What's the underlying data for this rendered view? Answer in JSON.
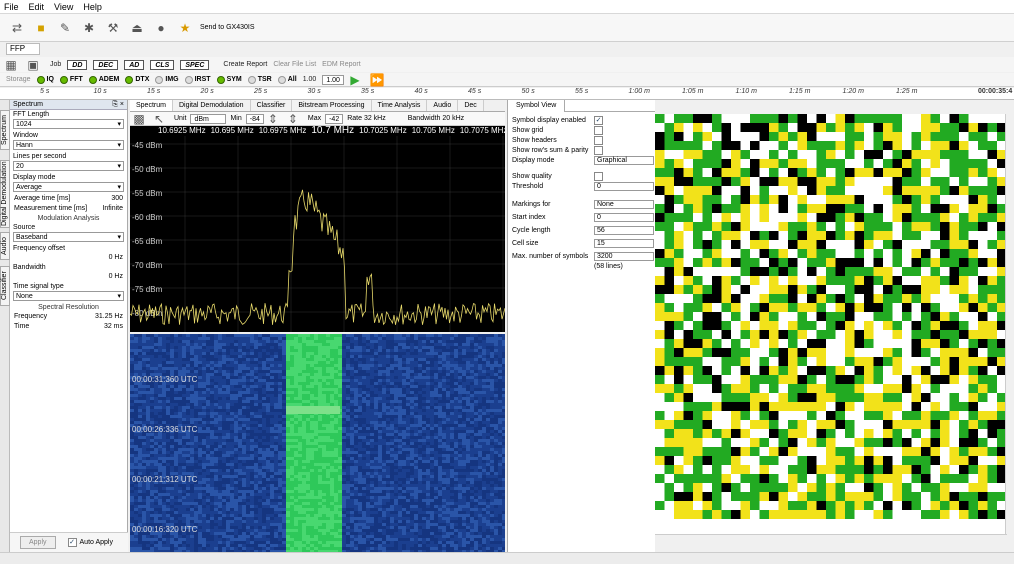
{
  "menu": [
    "File",
    "Edit",
    "View",
    "Help"
  ],
  "toolbar1": {
    "send_label": "Send to GX430IS"
  },
  "ffp_tab": "FFP",
  "toolbar2": {
    "job": "Job",
    "buttons": [
      "DD",
      "DEC",
      "AD",
      "CLS",
      "SPEC"
    ],
    "create_report": "Create Report",
    "clear_file_list": "Clear File List",
    "edm_report": "EDM Report"
  },
  "toolbar3": {
    "storage": "Storage",
    "modes": [
      {
        "label": "IQ",
        "on": true
      },
      {
        "label": "FFT",
        "on": true
      },
      {
        "label": "ADEM",
        "on": true
      },
      {
        "label": "DTX",
        "on": true
      },
      {
        "label": "IMG",
        "on": false
      },
      {
        "label": "IRST",
        "on": false
      },
      {
        "label": "SYM",
        "on": true
      },
      {
        "label": "TSR",
        "on": false
      },
      {
        "label": "All",
        "on": false
      }
    ],
    "speed1": "1.00",
    "speed2": "1.00"
  },
  "ruler": {
    "ticks": [
      "5 s",
      "10 s",
      "15 s",
      "20 s",
      "25 s",
      "30 s",
      "35 s",
      "40 s",
      "45 s",
      "50 s",
      "55 s",
      "1:00 m",
      "1:05 m",
      "1:10 m",
      "1:15 m",
      "1:20 m",
      "1:25 m"
    ],
    "time": "00:00:35:4"
  },
  "vtabs": [
    "Spectrum",
    "Digital Demodulation",
    "Audio",
    "Classifier"
  ],
  "left": {
    "title": "Spectrum",
    "fft_length_label": "FFT Length",
    "fft_length": "1024",
    "window_label": "Window",
    "window": "Hann",
    "lps_label": "Lines per second",
    "lps": "20",
    "display_mode_label": "Display mode",
    "display_mode": "Average",
    "avg_time_label": "Average time [ms]",
    "avg_time": "300",
    "meas_time_label": "Measurement time [ms]",
    "meas_time": "Infinite",
    "mod_analysis": "Modulation Analysis",
    "source_label": "Source",
    "source": "Baseband",
    "freq_offset_label": "Frequency offset",
    "freq_offset": "0 Hz",
    "bandwidth_label": "Bandwidth",
    "bandwidth": "0 Hz",
    "tst_label": "Time signal type",
    "tst": "None",
    "spec_res": "Spectral Resolution",
    "frequency_label": "Frequency",
    "frequency": "31.25 Hz",
    "time_label": "Time",
    "time": "32 ms",
    "apply": "Apply",
    "auto_apply": "Auto Apply"
  },
  "center": {
    "tabs": [
      "Spectrum",
      "Digital Demodulation",
      "Classifier",
      "Bitstream Processing",
      "Time Analysis",
      "Audio",
      "Dec"
    ],
    "unit_label": "Unit",
    "unit": "dBm",
    "min_label": "Min",
    "min": "-84",
    "max_label": "Max",
    "max": "-42",
    "rate": "Rate 32 kHz",
    "bw": "Bandwidth 20 kHz",
    "freqs": [
      "10.6925 MHz",
      "10.695 MHz",
      "10.6975 MHz",
      "10.7 MHz",
      "10.7025 MHz",
      "10.705 MHz",
      "10.7075 MHz"
    ],
    "dbm": [
      "-45 dBm",
      "-50 dBm",
      "-55 dBm",
      "-60 dBm",
      "-65 dBm",
      "-70 dBm",
      "-75 dBm",
      "-80 dBm"
    ],
    "wf_times": [
      "00:00:31:360 UTC",
      "00:00:26:336 UTC",
      "00:00:21:312 UTC",
      "00:00:16:320 UTC"
    ]
  },
  "right": {
    "tab": "Symbol View",
    "sym_enabled": "Symbol display enabled",
    "show_grid": "Show grid",
    "show_headers": "Show headers",
    "show_rows": "Show row's sum & parity",
    "display_mode_label": "Display mode",
    "display_mode": "Graphical",
    "show_quality": "Show quality",
    "threshold_label": "Threshold",
    "threshold": "0",
    "markings_label": "Markings for",
    "markings": "None",
    "start_label": "Start index",
    "start": "0",
    "cycle_label": "Cycle length",
    "cycle": "56",
    "cell_label": "Cell size",
    "cell": "15",
    "max_label": "Max. number of symbols",
    "max": "3200",
    "lines": "(58 lines)"
  },
  "colors": {
    "sym_green": "#22aa22",
    "sym_yellow": "#f2e21a",
    "sym_black": "#000000",
    "trace": "#e6d86a"
  }
}
